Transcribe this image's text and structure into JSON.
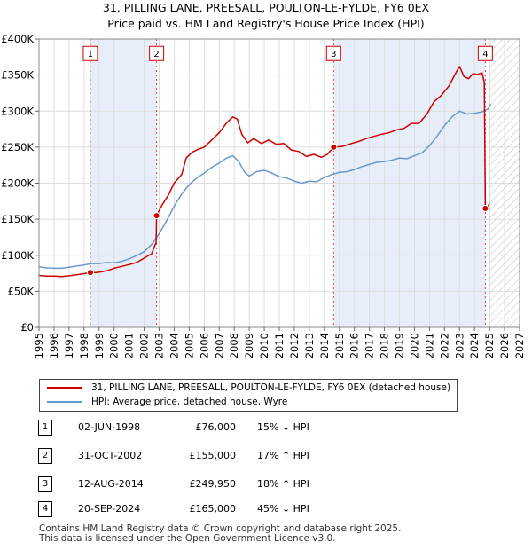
{
  "title_line1": "31, PILLING LANE, PREESALL, POULTON-LE-FYLDE, FY6 0EX",
  "title_line2": "Price paid vs. HM Land Registry's House Price Index (HPI)",
  "chart_data": {
    "type": "line",
    "xlim": [
      1995,
      2027
    ],
    "ylim": [
      0,
      400000
    ],
    "x_ticks": [
      "1995",
      "1996",
      "1997",
      "1998",
      "1999",
      "2000",
      "2001",
      "2002",
      "2003",
      "2004",
      "2005",
      "2006",
      "2007",
      "2008",
      "2009",
      "2010",
      "2011",
      "2012",
      "2013",
      "2014",
      "2015",
      "2016",
      "2017",
      "2018",
      "2019",
      "2020",
      "2021",
      "2022",
      "2023",
      "2024",
      "2025",
      "2026",
      "2027"
    ],
    "y_ticks": [
      {
        "value": 0,
        "label": "£0"
      },
      {
        "value": 50000,
        "label": "£50K"
      },
      {
        "value": 100000,
        "label": "£100K"
      },
      {
        "value": 150000,
        "label": "£150K"
      },
      {
        "value": 200000,
        "label": "£200K"
      },
      {
        "value": 250000,
        "label": "£250K"
      },
      {
        "value": 300000,
        "label": "£300K"
      },
      {
        "value": 350000,
        "label": "£350K"
      },
      {
        "value": 400000,
        "label": "£400K"
      }
    ],
    "grid": true,
    "shaded_periods": [
      [
        1998.42,
        2002.83
      ],
      [
        2014.62,
        2024.72
      ]
    ],
    "future_hatch_from": 2025.0,
    "series": [
      {
        "name": "31, PILLING LANE, PREESALL, POULTON-LE-FYLDE, FY6 0EX (detached house)",
        "color": "#cc0000",
        "points": [
          [
            1995.0,
            72000
          ],
          [
            1995.5,
            71000
          ],
          [
            1996.0,
            71000
          ],
          [
            1996.5,
            70500
          ],
          [
            1997.0,
            71500
          ],
          [
            1997.5,
            73000
          ],
          [
            1998.0,
            74500
          ],
          [
            1998.42,
            76000
          ],
          [
            1998.8,
            76000
          ],
          [
            1999.2,
            77000
          ],
          [
            1999.6,
            79000
          ],
          [
            2000.0,
            82000
          ],
          [
            2000.5,
            84500
          ],
          [
            2001.0,
            87000
          ],
          [
            2001.5,
            90000
          ],
          [
            2002.0,
            96000
          ],
          [
            2002.5,
            102000
          ],
          [
            2002.8,
            118000
          ],
          [
            2002.83,
            155000
          ],
          [
            2003.2,
            170000
          ],
          [
            2003.6,
            183000
          ],
          [
            2004.0,
            200000
          ],
          [
            2004.5,
            212000
          ],
          [
            2004.8,
            235000
          ],
          [
            2005.2,
            243000
          ],
          [
            2005.6,
            247000
          ],
          [
            2006.0,
            250000
          ],
          [
            2006.5,
            260000
          ],
          [
            2007.0,
            270000
          ],
          [
            2007.5,
            284000
          ],
          [
            2007.9,
            292000
          ],
          [
            2008.2,
            289000
          ],
          [
            2008.5,
            268000
          ],
          [
            2008.9,
            256000
          ],
          [
            2009.3,
            262000
          ],
          [
            2009.8,
            255000
          ],
          [
            2010.3,
            260000
          ],
          [
            2010.8,
            254000
          ],
          [
            2011.3,
            255000
          ],
          [
            2011.8,
            246000
          ],
          [
            2012.3,
            244000
          ],
          [
            2012.8,
            237000
          ],
          [
            2013.3,
            240000
          ],
          [
            2013.8,
            236000
          ],
          [
            2014.2,
            240000
          ],
          [
            2014.62,
            249950
          ],
          [
            2015.2,
            251000
          ],
          [
            2015.8,
            255000
          ],
          [
            2016.3,
            258000
          ],
          [
            2016.8,
            262000
          ],
          [
            2017.3,
            265000
          ],
          [
            2017.8,
            268000
          ],
          [
            2018.3,
            270000
          ],
          [
            2018.8,
            274000
          ],
          [
            2019.3,
            276000
          ],
          [
            2019.8,
            283000
          ],
          [
            2020.3,
            283000
          ],
          [
            2020.8,
            295000
          ],
          [
            2021.3,
            313000
          ],
          [
            2021.8,
            322000
          ],
          [
            2022.3,
            335000
          ],
          [
            2022.8,
            355000
          ],
          [
            2023.0,
            362000
          ],
          [
            2023.3,
            348000
          ],
          [
            2023.6,
            345000
          ],
          [
            2023.9,
            352000
          ],
          [
            2024.2,
            351000
          ],
          [
            2024.5,
            353000
          ],
          [
            2024.65,
            340000
          ],
          [
            2024.72,
            165000
          ],
          [
            2024.9,
            168000
          ],
          [
            2025.0,
            172000
          ]
        ]
      },
      {
        "name": "HPI: Average price, detached house, Wyre",
        "color": "#6699cc",
        "points": [
          [
            1995.0,
            84000
          ],
          [
            1995.5,
            82500
          ],
          [
            1996.0,
            82000
          ],
          [
            1996.5,
            82000
          ],
          [
            1997.0,
            83500
          ],
          [
            1997.5,
            85000
          ],
          [
            1998.0,
            86500
          ],
          [
            1998.5,
            88500
          ],
          [
            1999.0,
            88500
          ],
          [
            1999.5,
            90000
          ],
          [
            2000.0,
            89500
          ],
          [
            2000.5,
            91500
          ],
          [
            2001.0,
            95000
          ],
          [
            2001.5,
            99500
          ],
          [
            2002.0,
            105000
          ],
          [
            2002.5,
            115000
          ],
          [
            2003.0,
            130000
          ],
          [
            2003.5,
            148000
          ],
          [
            2004.0,
            168000
          ],
          [
            2004.5,
            185000
          ],
          [
            2005.0,
            198000
          ],
          [
            2005.5,
            207000
          ],
          [
            2006.0,
            214000
          ],
          [
            2006.5,
            222000
          ],
          [
            2007.0,
            228000
          ],
          [
            2007.5,
            235000
          ],
          [
            2007.9,
            238000
          ],
          [
            2008.3,
            230000
          ],
          [
            2008.7,
            215000
          ],
          [
            2009.0,
            210000
          ],
          [
            2009.5,
            216000
          ],
          [
            2010.0,
            218000
          ],
          [
            2010.5,
            214000
          ],
          [
            2011.0,
            209000
          ],
          [
            2011.5,
            207000
          ],
          [
            2012.0,
            203000
          ],
          [
            2012.5,
            200000
          ],
          [
            2013.0,
            203000
          ],
          [
            2013.5,
            202000
          ],
          [
            2014.0,
            208000
          ],
          [
            2014.5,
            212000
          ],
          [
            2015.0,
            215000
          ],
          [
            2015.5,
            216000
          ],
          [
            2016.0,
            219000
          ],
          [
            2016.5,
            223000
          ],
          [
            2017.0,
            226000
          ],
          [
            2017.5,
            229000
          ],
          [
            2018.0,
            230000
          ],
          [
            2018.5,
            232000
          ],
          [
            2019.0,
            235000
          ],
          [
            2019.5,
            234000
          ],
          [
            2020.0,
            238000
          ],
          [
            2020.5,
            242000
          ],
          [
            2021.0,
            252000
          ],
          [
            2021.5,
            265000
          ],
          [
            2022.0,
            280000
          ],
          [
            2022.5,
            292000
          ],
          [
            2023.0,
            300000
          ],
          [
            2023.5,
            296000
          ],
          [
            2024.0,
            297000
          ],
          [
            2024.5,
            299000
          ],
          [
            2024.9,
            303000
          ],
          [
            2025.1,
            310000
          ]
        ]
      }
    ],
    "sale_markers": [
      {
        "label": "1",
        "x": 1998.42,
        "y": 76000
      },
      {
        "label": "2",
        "x": 2002.83,
        "y": 155000
      },
      {
        "label": "3",
        "x": 2014.62,
        "y": 249950
      },
      {
        "label": "4",
        "x": 2024.72,
        "y": 165000
      }
    ],
    "marker_box_value": 380000
  },
  "legend": {
    "property_label": "31, PILLING LANE, PREESALL, POULTON-LE-FYLDE, FY6 0EX (detached house)",
    "hpi_label": "HPI: Average price, detached house, Wyre"
  },
  "sales": [
    {
      "num": "1",
      "date": "02-JUN-1998",
      "price": "£76,000",
      "hpi": "15% ↓ HPI"
    },
    {
      "num": "2",
      "date": "31-OCT-2002",
      "price": "£155,000",
      "hpi": "17% ↑ HPI"
    },
    {
      "num": "3",
      "date": "12-AUG-2014",
      "price": "£249,950",
      "hpi": "18% ↑ HPI"
    },
    {
      "num": "4",
      "date": "20-SEP-2024",
      "price": "£165,000",
      "hpi": "45% ↓ HPI"
    }
  ],
  "footer": {
    "line1": "Contains HM Land Registry data © Crown copyright and database right 2025.",
    "line2": "This data is licensed under the Open Government Licence v3.0."
  }
}
